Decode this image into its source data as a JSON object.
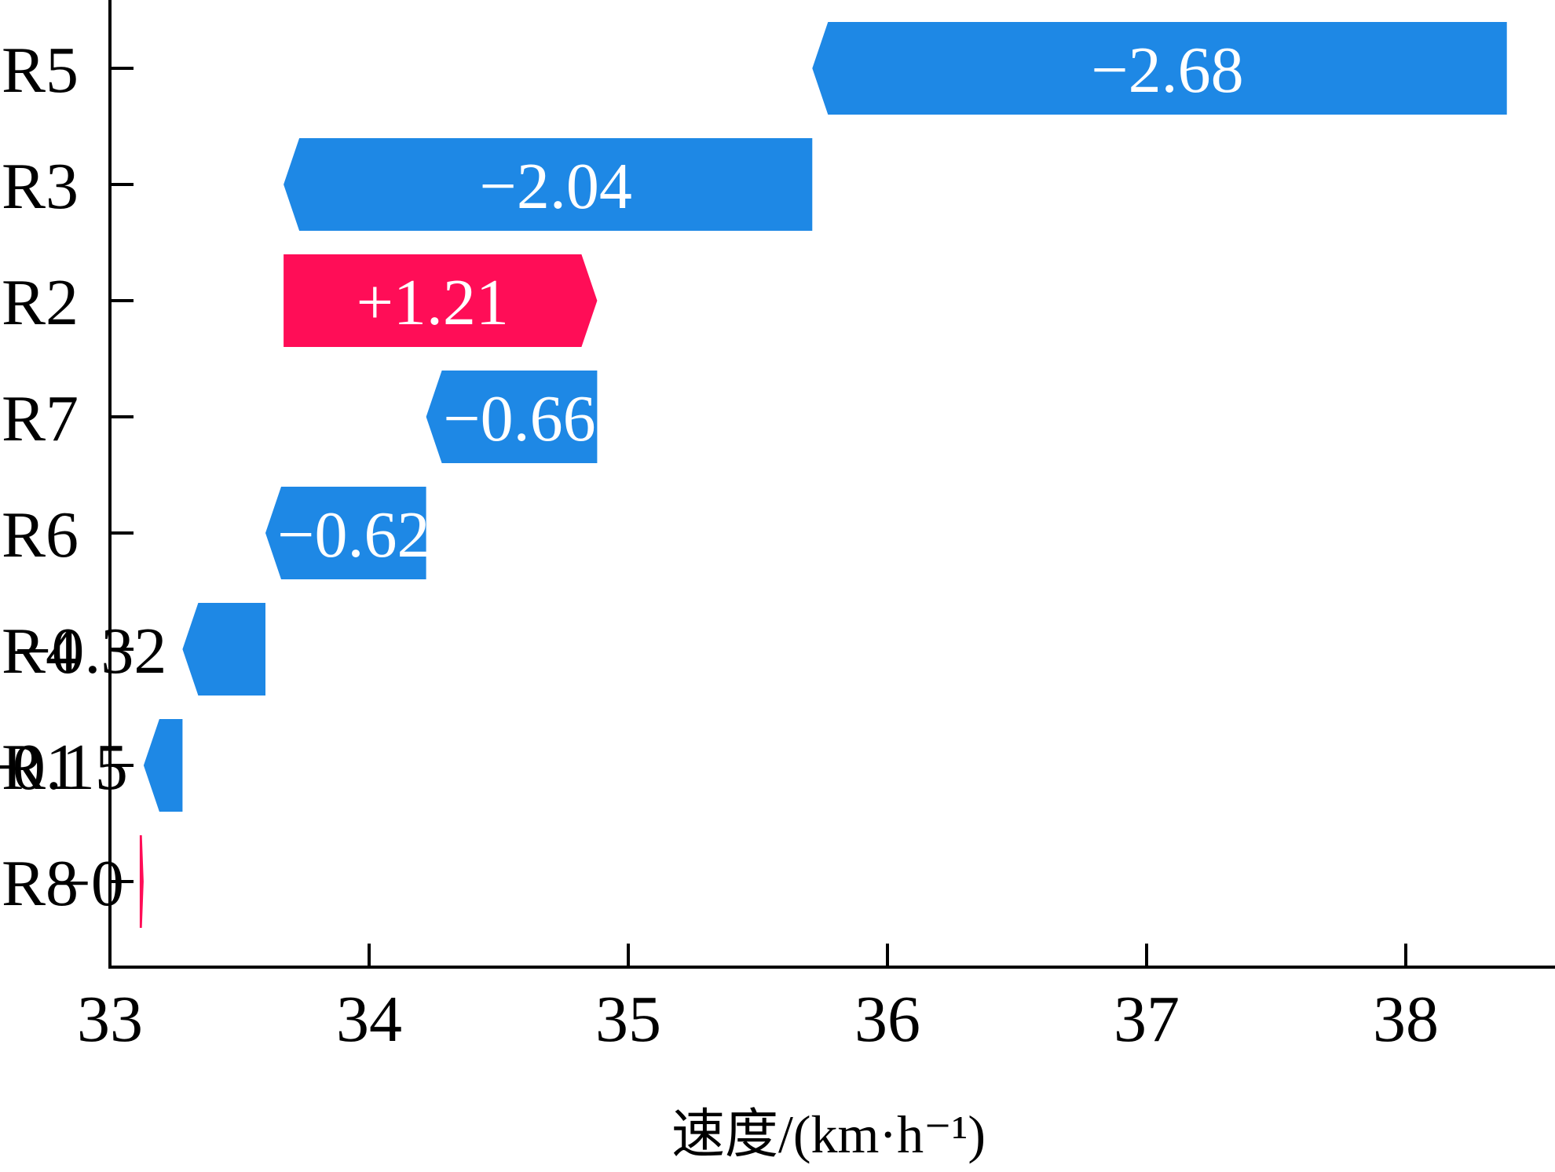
{
  "chart_data": {
    "type": "bar",
    "orientation": "horizontal-waterfall",
    "title": "",
    "xlabel": "速度/(km·h⁻¹)",
    "ylabel": "",
    "xlim": [
      33,
      38.4
    ],
    "xticks": [
      33,
      34,
      35,
      36,
      37,
      38
    ],
    "end_value": 38.39,
    "grid": false,
    "categories": [
      "R5",
      "R3",
      "R2",
      "R7",
      "R6",
      "R4",
      "R1",
      "R8"
    ],
    "values": [
      -2.68,
      -2.04,
      1.21,
      -0.66,
      -0.62,
      -0.32,
      -0.15,
      -0.0
    ],
    "labels": [
      "−2.68",
      "−2.04",
      "+1.21",
      "−0.66",
      "−0.62",
      "−0.32",
      "−0.15",
      "−0"
    ],
    "colors": {
      "negative": "#1E88E5",
      "positive": "#FF0D57",
      "inside_label": "#FFFFFF",
      "outside_label": "#000000"
    }
  }
}
